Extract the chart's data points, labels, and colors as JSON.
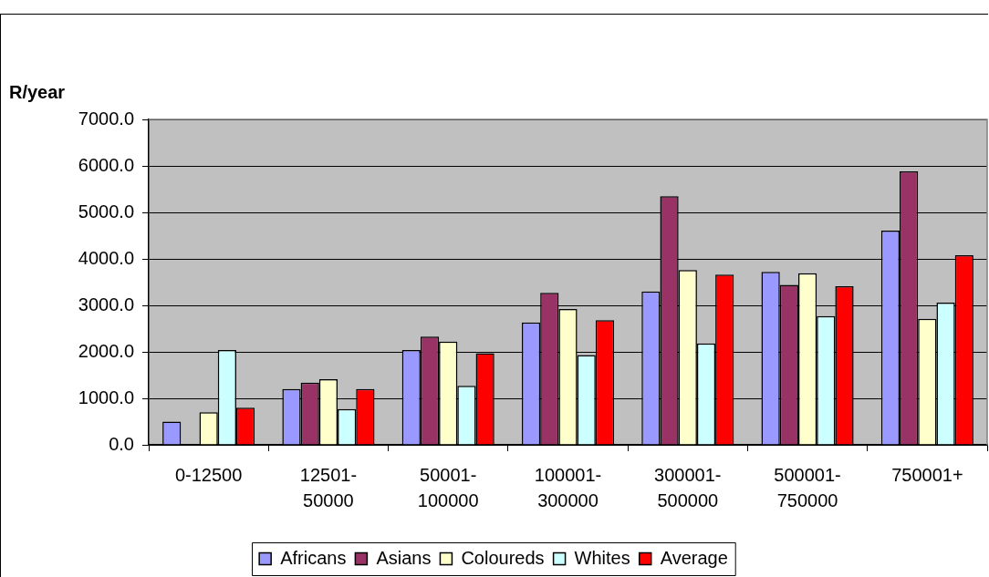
{
  "chart_data": {
    "type": "bar",
    "ylabel": "R/year",
    "categories": [
      "0-12500",
      "12501-50000",
      "50001-100000",
      "100001-300000",
      "300001-500000",
      "500001-750000",
      "750001+"
    ],
    "series": [
      {
        "name": "Africans",
        "color": "#9999ff",
        "values": [
          500,
          1200,
          2040,
          2630,
          3300,
          3720,
          4610
        ]
      },
      {
        "name": "Asians",
        "color": "#993366",
        "values": [
          null,
          1340,
          2330,
          3270,
          5350,
          3440,
          5880
        ]
      },
      {
        "name": "Coloureds",
        "color": "#ffffcc",
        "values": [
          700,
          1410,
          2220,
          2920,
          3760,
          3690,
          2710
        ]
      },
      {
        "name": "Whites",
        "color": "#ccffff",
        "values": [
          2040,
          770,
          1270,
          1930,
          2180,
          2770,
          3060
        ]
      },
      {
        "name": "Average",
        "color": "#ff0000",
        "values": [
          800,
          1200,
          1970,
          2680,
          3660,
          3410,
          4080
        ]
      }
    ],
    "ylim": [
      0,
      7000
    ],
    "yticks": [
      {
        "value": 0,
        "label": "0.0"
      },
      {
        "value": 1000,
        "label": "1000.0"
      },
      {
        "value": 2000,
        "label": "2000.0"
      },
      {
        "value": 3000,
        "label": "3000.0"
      },
      {
        "value": 4000,
        "label": "4000.0"
      },
      {
        "value": 5000,
        "label": "5000.0"
      },
      {
        "value": 6000,
        "label": "6000.0"
      },
      {
        "value": 7000,
        "label": "7000.0"
      }
    ],
    "grid": "y",
    "legend": "bottom"
  }
}
